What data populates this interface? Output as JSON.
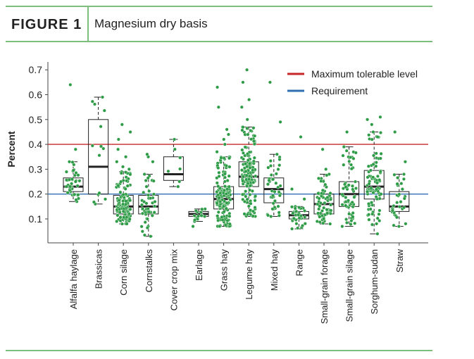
{
  "figure": {
    "label": "FIGURE 1",
    "title": "Magnesium dry basis"
  },
  "colors": {
    "frame": "#7cbf7c",
    "point": "#2e9b46",
    "max_line": "#c62828",
    "req_line": "#2f6fb0",
    "box": "#222222"
  },
  "chart_data": {
    "type": "box",
    "ylabel": "Percent",
    "ylim": [
      0.0,
      0.75
    ],
    "yticks": [
      0.1,
      0.2,
      0.3,
      0.4,
      0.5,
      0.6,
      0.7
    ],
    "grid": false,
    "legend_position": "top-right",
    "reference_lines": [
      {
        "name": "Maximum tolerable level",
        "y": 0.4,
        "color": "#c62828"
      },
      {
        "name": "Requirement",
        "y": 0.2,
        "color": "#2f6fb0"
      }
    ],
    "categories": [
      "Alfalfa haylage",
      "Brassicas",
      "Corn silage",
      "Cornstalks",
      "Cover crop mix",
      "Earlage",
      "Grass hay",
      "Legume hay",
      "Mixed hay",
      "Range",
      "Small-grain forage",
      "Small-grain silage",
      "Sorghum-sudan",
      "Straw"
    ],
    "boxes": [
      {
        "category": "Alfalfa haylage",
        "whisker_low": 0.17,
        "q1": 0.21,
        "median": 0.23,
        "q3": 0.265,
        "whisker_high": 0.33,
        "outliers": [
          0.38,
          0.64
        ],
        "n": 40
      },
      {
        "category": "Brassicas",
        "whisker_low": 0.16,
        "q1": 0.2,
        "median": 0.31,
        "q3": 0.5,
        "whisker_high": 0.59,
        "outliers": [],
        "n": 12
      },
      {
        "category": "Corn silage",
        "whisker_low": 0.08,
        "q1": 0.12,
        "median": 0.15,
        "q3": 0.195,
        "whisker_high": 0.29,
        "outliers": [
          0.3,
          0.31,
          0.33,
          0.35,
          0.38,
          0.42,
          0.45,
          0.48
        ],
        "n": 120
      },
      {
        "category": "Cornstalks",
        "whisker_low": 0.03,
        "q1": 0.12,
        "median": 0.15,
        "q3": 0.195,
        "whisker_high": 0.28,
        "outliers": [
          0.33,
          0.35,
          0.36
        ],
        "n": 45
      },
      {
        "category": "Cover crop mix",
        "whisker_low": 0.23,
        "q1": 0.255,
        "median": 0.28,
        "q3": 0.35,
        "whisker_high": 0.42,
        "outliers": [],
        "n": 6
      },
      {
        "category": "Earlage",
        "whisker_low": 0.09,
        "q1": 0.11,
        "median": 0.12,
        "q3": 0.13,
        "whisker_high": 0.14,
        "outliers": [
          0.07
        ],
        "n": 15
      },
      {
        "category": "Grass hay",
        "whisker_low": 0.07,
        "q1": 0.14,
        "median": 0.18,
        "q3": 0.23,
        "whisker_high": 0.35,
        "outliers": [
          0.37,
          0.4,
          0.42,
          0.44,
          0.46,
          0.55,
          0.63
        ],
        "n": 150
      },
      {
        "category": "Legume hay",
        "whisker_low": 0.11,
        "q1": 0.23,
        "median": 0.27,
        "q3": 0.33,
        "whisker_high": 0.47,
        "outliers": [
          0.5,
          0.55,
          0.58,
          0.65,
          0.7
        ],
        "n": 150
      },
      {
        "category": "Mixed hay",
        "whisker_low": 0.11,
        "q1": 0.165,
        "median": 0.22,
        "q3": 0.265,
        "whisker_high": 0.36,
        "outliers": [
          0.49,
          0.65
        ],
        "n": 40
      },
      {
        "category": "Range",
        "whisker_low": 0.06,
        "q1": 0.1,
        "median": 0.115,
        "q3": 0.13,
        "whisker_high": 0.15,
        "outliers": [
          0.18,
          0.22,
          0.43
        ],
        "n": 30
      },
      {
        "category": "Small-grain forage",
        "whisker_low": 0.08,
        "q1": 0.12,
        "median": 0.16,
        "q3": 0.2,
        "whisker_high": 0.28,
        "outliers": [
          0.3,
          0.38
        ],
        "n": 70
      },
      {
        "category": "Small-grain silage",
        "whisker_low": 0.07,
        "q1": 0.15,
        "median": 0.2,
        "q3": 0.25,
        "whisker_high": 0.39,
        "outliers": [
          0.45
        ],
        "n": 60
      },
      {
        "category": "Sorghum-sudan",
        "whisker_low": 0.04,
        "q1": 0.18,
        "median": 0.23,
        "q3": 0.295,
        "whisker_high": 0.45,
        "outliers": [
          0.48,
          0.5,
          0.51
        ],
        "n": 90
      },
      {
        "category": "Straw",
        "whisker_low": 0.07,
        "q1": 0.13,
        "median": 0.15,
        "q3": 0.21,
        "whisker_high": 0.28,
        "outliers": [
          0.33,
          0.45
        ],
        "n": 30
      }
    ]
  }
}
